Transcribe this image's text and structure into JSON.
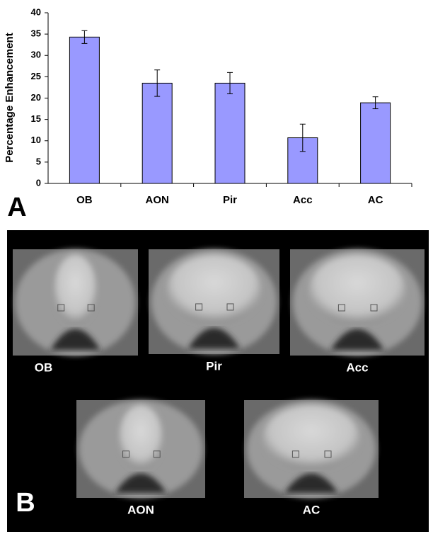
{
  "chart_data": {
    "type": "bar",
    "ylabel": "Percentage Enhancement",
    "categories": [
      "OB",
      "AON",
      "Pir",
      "Acc",
      "AC"
    ],
    "values": [
      34.3,
      23.5,
      23.5,
      10.7,
      18.9
    ],
    "error": [
      1.5,
      3.1,
      2.5,
      3.2,
      1.4
    ],
    "color": "#9999ff",
    "ylim": [
      0,
      40
    ],
    "yticks": [
      0,
      5,
      10,
      15,
      20,
      25,
      30,
      35,
      40
    ],
    "grid": false
  },
  "panel_a_label": "A",
  "panel_b": {
    "label": "B",
    "images": [
      "OB",
      "Pir",
      "Acc",
      "AON",
      "AC"
    ]
  }
}
